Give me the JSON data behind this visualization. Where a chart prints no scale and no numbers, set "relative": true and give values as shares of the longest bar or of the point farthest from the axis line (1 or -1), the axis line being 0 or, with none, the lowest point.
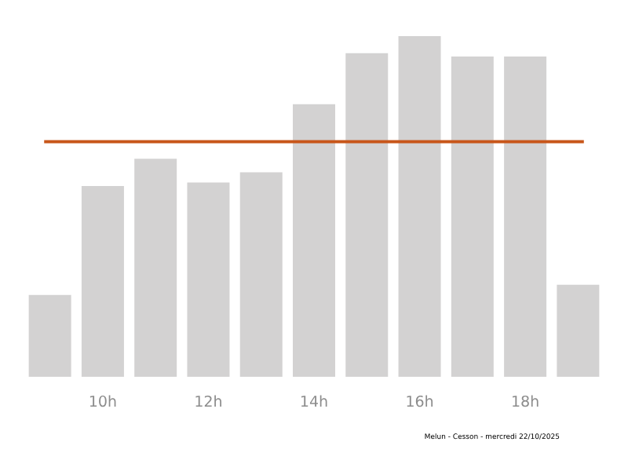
{
  "chart_data": {
    "type": "bar",
    "relative": true,
    "categories": [
      null,
      "10h",
      null,
      "12h",
      null,
      "14h",
      null,
      "16h",
      null,
      "18h",
      null
    ],
    "values": [
      0.24,
      0.56,
      0.64,
      0.57,
      0.6,
      0.8,
      0.95,
      1,
      0.94,
      0.94,
      0.27
    ],
    "color": "#d3d2d2",
    "ref_lines": [
      {
        "axis": "y",
        "value": 0.69,
        "color": "#c8561a"
      }
    ],
    "annotations": [
      "Melun - Cesson - mercredi 22/10/2025"
    ]
  }
}
